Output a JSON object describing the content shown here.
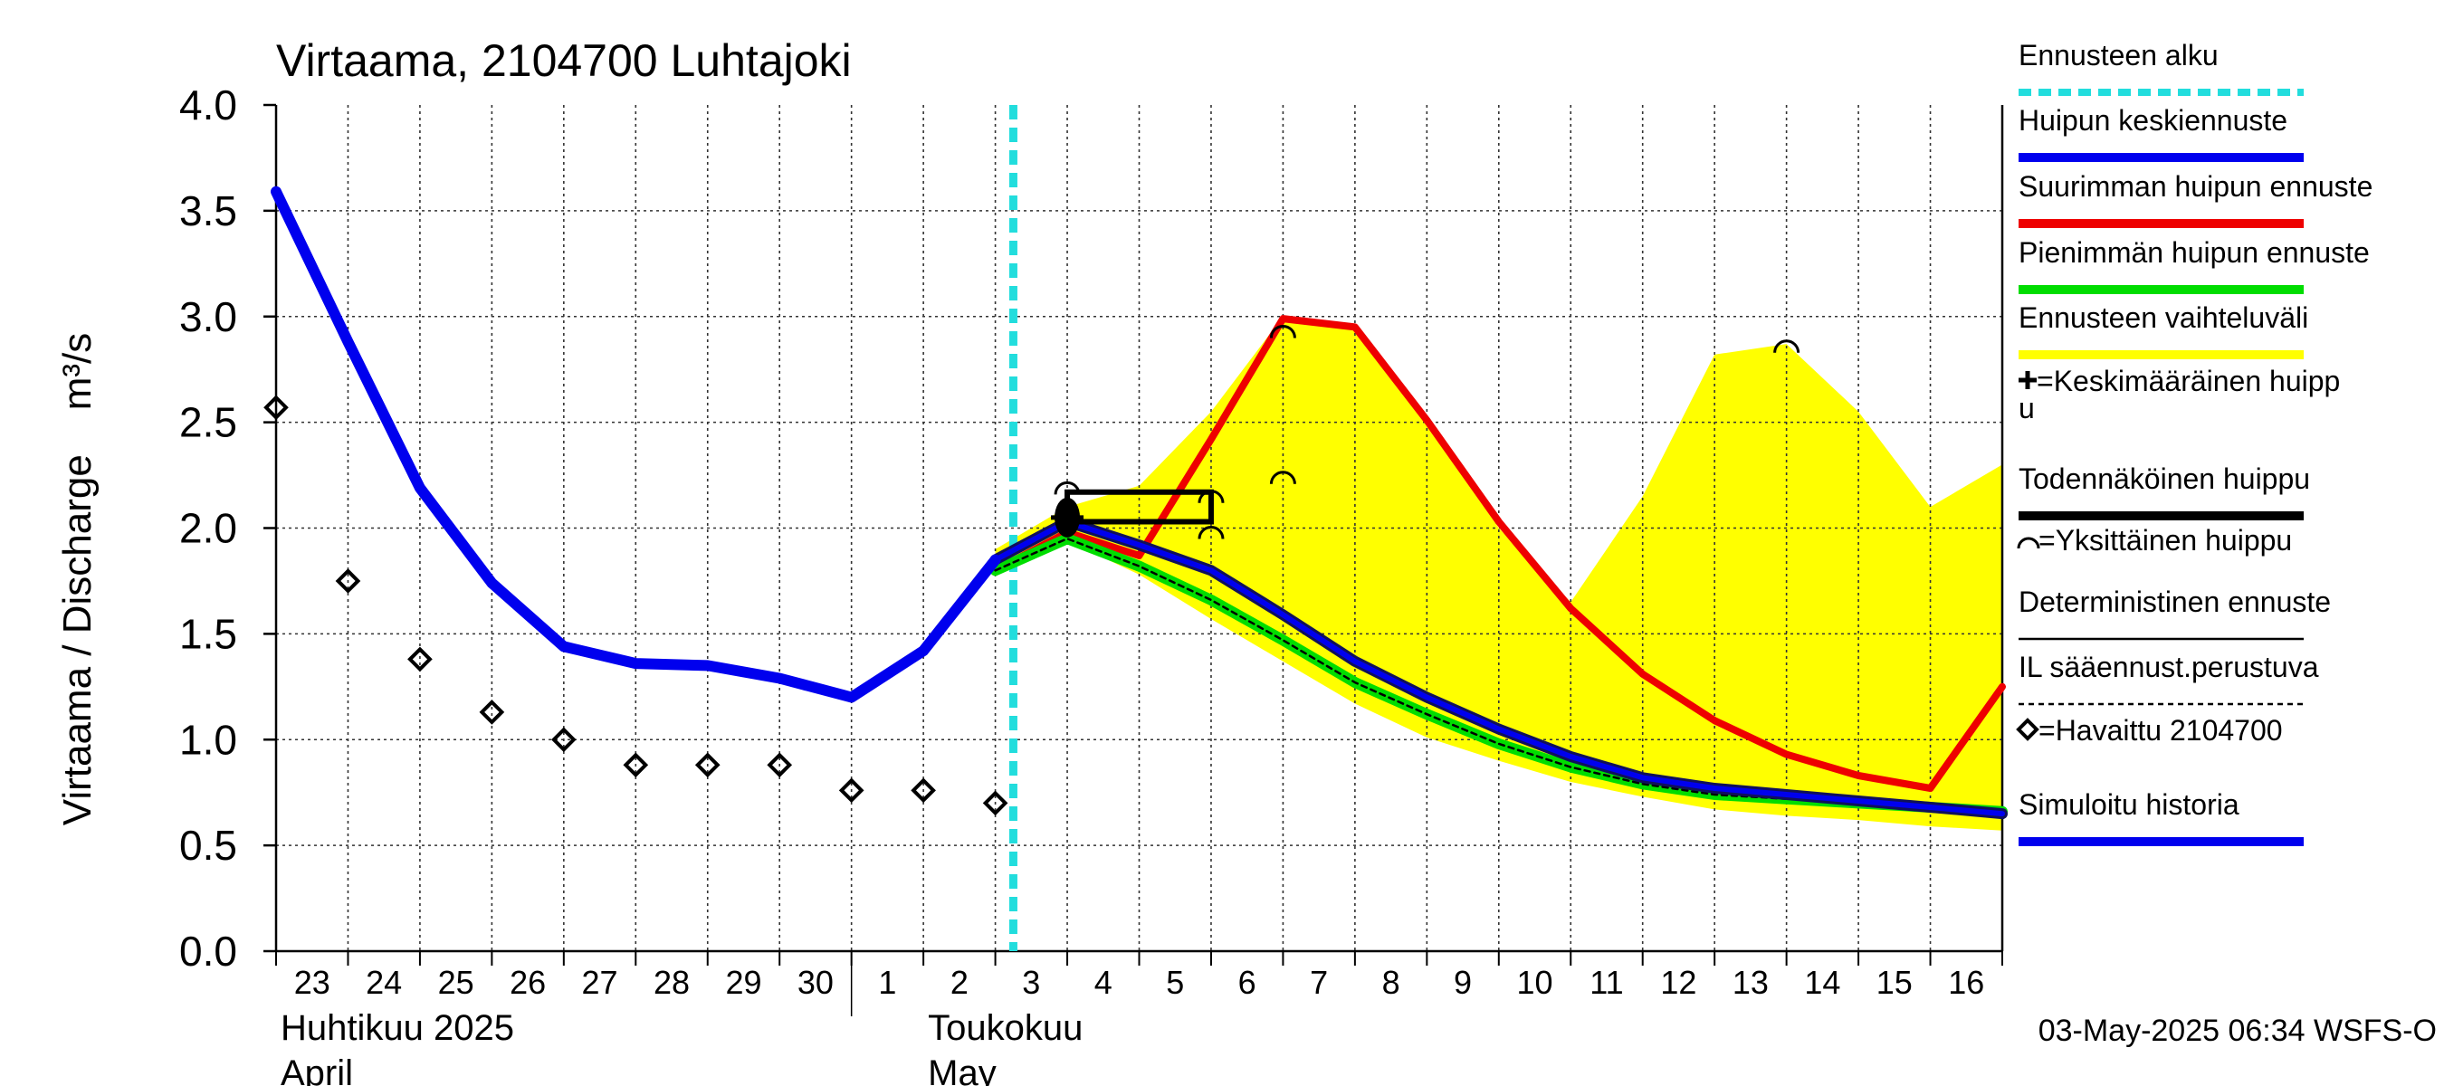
{
  "chart_data": {
    "type": "line",
    "title": "Virtaama, 2104700 Luhtajoki",
    "ylabel": "Virtaama / Discharge    m³/s",
    "ylim": [
      0.0,
      4.0
    ],
    "yticks": [
      "0.0",
      "0.5",
      "1.0",
      "1.5",
      "2.0",
      "2.5",
      "3.0",
      "3.5",
      "4.0"
    ],
    "x_start": "2025-04-23",
    "x_end": "2025-05-17",
    "day_labels": [
      "23",
      "24",
      "25",
      "26",
      "27",
      "28",
      "29",
      "30",
      "1",
      "2",
      "3",
      "4",
      "5",
      "6",
      "7",
      "8",
      "9",
      "10",
      "11",
      "12",
      "13",
      "14",
      "15",
      "16"
    ],
    "month_labels": [
      {
        "date": "2025-04-23",
        "line1": "Huhtikuu  2025",
        "line2": "April"
      },
      {
        "date": "2025-05-02",
        "line1": "Toukokuu",
        "line2": "May"
      }
    ],
    "grid": true,
    "legend_position": "right",
    "timestamp": "03-May-2025 06:34 WSFS-O",
    "forecast_start": "2025-05-03T06:00",
    "colors": {
      "forecast_start": "#22dddd",
      "mean_peak": "#0000ee",
      "max_peak": "#ee0000",
      "min_peak": "#00dd00",
      "range": "#ffff00",
      "simulated": "#0000ee",
      "deterministic": "#000000"
    },
    "series": [
      {
        "name": "Simuloitu historia",
        "key": "simulated",
        "x": [
          "2025-04-23",
          "2025-04-24",
          "2025-04-25",
          "2025-04-26",
          "2025-04-27",
          "2025-04-28",
          "2025-04-29",
          "2025-04-30",
          "2025-05-01",
          "2025-05-02",
          "2025-05-03"
        ],
        "y": [
          3.59,
          2.88,
          2.19,
          1.74,
          1.44,
          1.36,
          1.35,
          1.29,
          1.2,
          1.42,
          1.85
        ]
      },
      {
        "name": "Ennusteen vaihteluväli",
        "key": "range",
        "x": [
          "2025-05-03",
          "2025-05-04",
          "2025-05-05",
          "2025-05-06",
          "2025-05-07",
          "2025-05-08",
          "2025-05-09",
          "2025-05-10",
          "2025-05-11",
          "2025-05-12",
          "2025-05-13",
          "2025-05-14",
          "2025-05-15",
          "2025-05-16",
          "2025-05-17"
        ],
        "upper": [
          1.9,
          2.1,
          2.2,
          2.55,
          3.0,
          2.95,
          2.5,
          2.0,
          1.65,
          2.15,
          2.82,
          2.87,
          2.55,
          2.1,
          2.3
        ],
        "lower": [
          1.78,
          1.94,
          1.78,
          1.57,
          1.37,
          1.17,
          1.01,
          0.9,
          0.8,
          0.73,
          0.67,
          0.64,
          0.62,
          0.59,
          0.57
        ]
      },
      {
        "name": "Suurimman huipun ennuste",
        "key": "max_peak",
        "x": [
          "2025-05-03",
          "2025-05-04",
          "2025-05-05",
          "2025-05-06",
          "2025-05-07",
          "2025-05-08",
          "2025-05-09",
          "2025-05-10",
          "2025-05-11",
          "2025-05-12",
          "2025-05-13",
          "2025-05-14",
          "2025-05-15",
          "2025-05-16",
          "2025-05-17"
        ],
        "y": [
          1.8,
          1.98,
          1.87,
          2.42,
          2.99,
          2.95,
          2.51,
          2.03,
          1.62,
          1.31,
          1.09,
          0.93,
          0.83,
          0.77,
          1.25
        ]
      },
      {
        "name": "Huipun keskiennuste",
        "key": "mean_peak",
        "x": [
          "2025-05-03",
          "2025-05-04",
          "2025-05-05",
          "2025-05-06",
          "2025-05-07",
          "2025-05-08",
          "2025-05-09",
          "2025-05-10",
          "2025-05-11",
          "2025-05-12",
          "2025-05-13",
          "2025-05-14",
          "2025-05-15",
          "2025-05-16",
          "2025-05-17"
        ],
        "y": [
          1.85,
          2.03,
          1.92,
          1.8,
          1.59,
          1.37,
          1.2,
          1.05,
          0.92,
          0.82,
          0.77,
          0.74,
          0.71,
          0.68,
          0.65
        ]
      },
      {
        "name": "Pienimmän huipun ennuste",
        "key": "min_peak",
        "x": [
          "2025-05-03",
          "2025-05-04",
          "2025-05-05",
          "2025-05-06",
          "2025-05-07",
          "2025-05-08",
          "2025-05-09",
          "2025-05-10",
          "2025-05-11",
          "2025-05-12",
          "2025-05-13",
          "2025-05-14",
          "2025-05-15",
          "2025-05-16",
          "2025-05-17"
        ],
        "y": [
          1.8,
          1.95,
          1.82,
          1.66,
          1.47,
          1.27,
          1.12,
          0.98,
          0.87,
          0.79,
          0.74,
          0.72,
          0.7,
          0.68,
          0.66
        ]
      },
      {
        "name": "IL sääennust.perustuva",
        "key": "il_forecast",
        "x": [
          "2025-05-03",
          "2025-05-04",
          "2025-05-05",
          "2025-05-06",
          "2025-05-07",
          "2025-05-08",
          "2025-05-09",
          "2025-05-10",
          "2025-05-11",
          "2025-05-12",
          "2025-05-13",
          "2025-05-14",
          "2025-05-15",
          "2025-05-16",
          "2025-05-17"
        ],
        "y": [
          1.8,
          1.95,
          1.82,
          1.66,
          1.47,
          1.27,
          1.12,
          0.98,
          0.87,
          0.79,
          0.74,
          0.72,
          0.7,
          0.68,
          0.66
        ]
      },
      {
        "name": "=Havaittu 2104700",
        "key": "observed",
        "x": [
          "2025-04-23",
          "2025-04-24",
          "2025-04-25",
          "2025-04-26",
          "2025-04-27",
          "2025-04-28",
          "2025-04-29",
          "2025-04-30",
          "2025-05-01",
          "2025-05-02",
          "2025-05-03"
        ],
        "y": [
          2.57,
          1.75,
          1.38,
          1.13,
          1.0,
          0.88,
          0.88,
          0.88,
          0.76,
          0.76,
          0.7
        ]
      }
    ],
    "individual_peaks": [
      {
        "x": "2025-05-04",
        "y": 2.21
      },
      {
        "x": "2025-05-06",
        "y": 2.17
      },
      {
        "x": "2025-05-06",
        "y": 2.0
      },
      {
        "x": "2025-05-07",
        "y": 2.95
      },
      {
        "x": "2025-05-07",
        "y": 2.26
      },
      {
        "x": "2025-05-14",
        "y": 2.88
      }
    ],
    "probable_peak_box": {
      "x_start": "2025-05-04",
      "x_end": "2025-05-06",
      "y_low": 2.03,
      "y_high": 2.17
    },
    "mean_peak_marker": {
      "x": "2025-05-04",
      "y": 2.05
    },
    "legend": [
      {
        "label": "Ennusteen alku",
        "style": "dashed",
        "color": "#22dddd"
      },
      {
        "label": "Huipun keskiennuste",
        "style": "thick",
        "color": "#0000ee"
      },
      {
        "label": "Suurimman huipun ennuste",
        "style": "thick",
        "color": "#ee0000"
      },
      {
        "label": "Pienimmän huipun ennuste",
        "style": "thick",
        "color": "#00dd00"
      },
      {
        "label": "Ennusteen vaihteluväli",
        "style": "thick",
        "color": "#ffff00"
      },
      {
        "label": "=Keskimääräinen huipp",
        "label2": "u",
        "style": "plus-marker",
        "color": "#000000"
      },
      {
        "label": "Todennäköinen huippu",
        "style": "thick",
        "color": "#000000"
      },
      {
        "label": "=Yksittäinen huippu",
        "style": "arc-marker",
        "color": "#000000"
      },
      {
        "label": "Deterministinen ennuste",
        "style": "thin",
        "color": "#000000"
      },
      {
        "label": "IL sääennust.perustuva",
        "style": "dashed-thin",
        "color": "#000000"
      },
      {
        "label": "=Havaittu 2104700",
        "style": "diamond-marker",
        "color": "#000000"
      },
      {
        "label": "Simuloitu historia",
        "style": "thick",
        "color": "#0000ee"
      }
    ]
  }
}
